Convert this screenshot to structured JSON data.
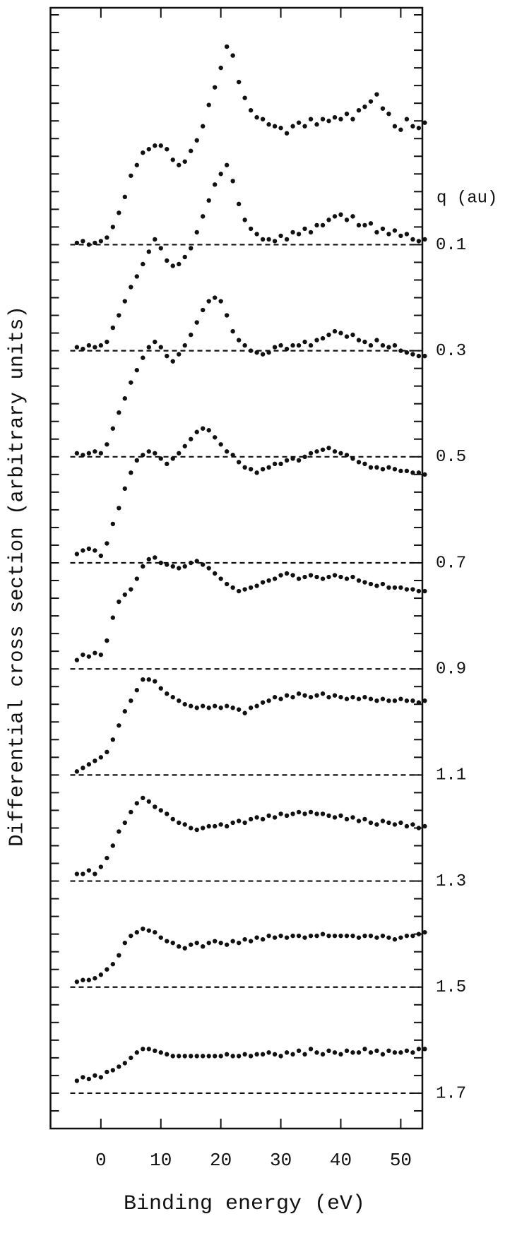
{
  "chart_data": {
    "type": "scatter",
    "xlabel": "Binding energy (eV)",
    "ylabel": "Differential cross section (arbitrary units)",
    "legend_title": "q (au)",
    "xlim": [
      -8.4,
      53.6
    ],
    "xticks": [
      0,
      10,
      20,
      30,
      40,
      50
    ],
    "ylim": [
      0,
      63.4
    ],
    "yticks": [
      0,
      1,
      2,
      3,
      4,
      5,
      6,
      7,
      8,
      9,
      10,
      11,
      12,
      13,
      14,
      15,
      16,
      17,
      18,
      19,
      20,
      21,
      22,
      23,
      24,
      25,
      26,
      27,
      28,
      29,
      30,
      31,
      32,
      33,
      34,
      35,
      36,
      37,
      38,
      39,
      40,
      41,
      42,
      43,
      44,
      45,
      46,
      47,
      48,
      49,
      50,
      51,
      52,
      53,
      54,
      55,
      56,
      57,
      58,
      59,
      60,
      61,
      62,
      63
    ],
    "color": "#111111",
    "x": [
      -4,
      -3,
      -2,
      -1,
      0,
      1,
      2,
      3,
      4,
      5,
      6,
      7,
      8,
      9,
      10,
      11,
      12,
      13,
      14,
      15,
      16,
      17,
      18,
      19,
      20,
      21,
      22,
      23,
      24,
      25,
      26,
      27,
      28,
      29,
      30,
      31,
      32,
      33,
      34,
      35,
      36,
      37,
      38,
      39,
      40,
      41,
      42,
      43,
      44,
      45,
      46,
      47,
      48,
      49,
      50,
      51,
      52,
      53,
      54
    ],
    "series": [
      {
        "name": "0.1",
        "baseline": 50,
        "values": [
          50.1,
          50.2,
          50.0,
          50.1,
          50.2,
          50.4,
          51.0,
          51.8,
          52.7,
          53.9,
          54.5,
          55.2,
          55.4,
          55.6,
          55.6,
          55.4,
          54.8,
          54.5,
          54.7,
          55.3,
          55.9,
          56.7,
          57.9,
          58.9,
          60.0,
          61.2,
          60.7,
          59.2,
          58.3,
          57.6,
          57.2,
          57.1,
          56.8,
          56.7,
          56.6,
          56.3,
          56.7,
          56.9,
          56.7,
          57.1,
          56.8,
          57.1,
          57.0,
          57.2,
          57.1,
          57.4,
          57.1,
          57.6,
          57.8,
          58.1,
          58.5,
          57.7,
          57.4,
          56.7,
          56.5,
          57.1,
          56.7,
          56.6,
          56.9
        ]
      },
      {
        "name": "0.3",
        "baseline": 44,
        "values": [
          44.2,
          44.1,
          44.3,
          44.2,
          44.3,
          44.5,
          45.3,
          46.0,
          46.8,
          47.6,
          48.2,
          48.9,
          49.6,
          50.3,
          49.8,
          49.1,
          48.8,
          48.9,
          49.3,
          49.8,
          50.7,
          51.6,
          52.5,
          53.4,
          54.0,
          54.5,
          53.6,
          52.3,
          51.4,
          50.9,
          50.6,
          50.3,
          50.3,
          50.2,
          50.5,
          50.3,
          50.7,
          50.6,
          50.9,
          50.7,
          51.1,
          51.1,
          51.4,
          51.6,
          51.7,
          51.4,
          51.6,
          51.1,
          51.1,
          51.2,
          50.7,
          50.9,
          50.6,
          50.8,
          50.5,
          50.6,
          50.3,
          50.2,
          50.3
        ]
      },
      {
        "name": "0.5",
        "baseline": 38,
        "values": [
          38.2,
          38.1,
          38.2,
          38.3,
          38.2,
          38.7,
          39.6,
          40.5,
          41.3,
          42.2,
          42.9,
          43.6,
          44.2,
          44.5,
          44.2,
          43.7,
          43.4,
          43.8,
          44.3,
          44.9,
          45.6,
          46.3,
          46.8,
          47.0,
          46.8,
          46.0,
          45.1,
          44.6,
          44.3,
          44.0,
          43.9,
          43.8,
          43.9,
          44.2,
          44.3,
          44.1,
          44.3,
          44.3,
          44.5,
          44.3,
          44.6,
          44.7,
          44.9,
          45.1,
          45.0,
          44.8,
          44.9,
          44.6,
          44.5,
          44.3,
          44.6,
          44.3,
          44.2,
          44.3,
          44.0,
          43.9,
          43.8,
          43.7,
          43.7
        ]
      },
      {
        "name": "0.7",
        "baseline": 32,
        "values": [
          32.5,
          32.7,
          32.8,
          32.7,
          32.4,
          33.1,
          34.2,
          35.1,
          36.2,
          37.1,
          37.8,
          38.1,
          38.3,
          38.2,
          37.9,
          37.6,
          37.9,
          38.2,
          38.6,
          39.0,
          39.4,
          39.6,
          39.5,
          39.1,
          38.7,
          38.3,
          38.1,
          37.7,
          37.4,
          37.3,
          37.1,
          37.3,
          37.4,
          37.6,
          37.6,
          37.8,
          37.9,
          37.8,
          38.0,
          38.2,
          38.3,
          38.4,
          38.5,
          38.3,
          38.2,
          38.1,
          37.9,
          37.7,
          37.6,
          37.4,
          37.4,
          37.3,
          37.4,
          37.3,
          37.2,
          37.2,
          37.1,
          37.1,
          37.0
        ]
      },
      {
        "name": "0.9",
        "baseline": 26,
        "values": [
          26.5,
          26.8,
          26.7,
          26.9,
          26.8,
          27.6,
          28.9,
          29.8,
          30.2,
          30.5,
          31.1,
          31.8,
          32.2,
          32.3,
          32.0,
          31.9,
          31.8,
          31.7,
          31.8,
          32.0,
          32.1,
          31.9,
          31.7,
          31.4,
          31.1,
          30.8,
          30.6,
          30.4,
          30.5,
          30.6,
          30.7,
          30.9,
          31.0,
          31.1,
          31.3,
          31.4,
          31.3,
          31.1,
          31.2,
          31.3,
          31.2,
          31.1,
          31.2,
          31.3,
          31.2,
          31.1,
          31.2,
          31.0,
          30.9,
          30.8,
          30.7,
          30.8,
          30.6,
          30.6,
          30.6,
          30.5,
          30.5,
          30.4,
          30.4
        ]
      },
      {
        "name": "1.1",
        "baseline": 20,
        "values": [
          20.2,
          20.4,
          20.6,
          20.8,
          21.0,
          21.3,
          22.0,
          22.8,
          23.6,
          24.2,
          24.8,
          25.4,
          25.4,
          25.3,
          24.9,
          24.6,
          24.4,
          24.2,
          24.0,
          23.9,
          23.8,
          23.9,
          23.8,
          23.9,
          23.8,
          23.9,
          23.8,
          23.7,
          23.5,
          23.8,
          23.9,
          24.1,
          24.2,
          24.4,
          24.3,
          24.5,
          24.4,
          24.6,
          24.5,
          24.4,
          24.5,
          24.6,
          24.4,
          24.5,
          24.4,
          24.3,
          24.4,
          24.3,
          24.4,
          24.3,
          24.2,
          24.3,
          24.2,
          24.2,
          24.3,
          24.2,
          24.2,
          24.1,
          24.2
        ]
      },
      {
        "name": "1.3",
        "baseline": 14,
        "values": [
          14.4,
          14.4,
          14.6,
          14.4,
          14.8,
          15.3,
          16.0,
          16.8,
          17.3,
          17.9,
          18.4,
          18.7,
          18.5,
          18.2,
          18.0,
          17.8,
          17.5,
          17.3,
          17.2,
          17.0,
          16.9,
          17.0,
          17.1,
          17.1,
          17.2,
          17.1,
          17.3,
          17.4,
          17.3,
          17.5,
          17.6,
          17.5,
          17.7,
          17.6,
          17.8,
          17.7,
          17.8,
          17.9,
          17.8,
          17.9,
          17.8,
          17.8,
          17.7,
          17.6,
          17.7,
          17.5,
          17.6,
          17.4,
          17.5,
          17.3,
          17.2,
          17.4,
          17.3,
          17.2,
          17.3,
          17.1,
          17.2,
          17.0,
          17.1
        ]
      },
      {
        "name": "1.5",
        "baseline": 8,
        "values": [
          8.3,
          8.4,
          8.4,
          8.5,
          8.7,
          9.0,
          9.3,
          9.8,
          10.5,
          10.9,
          11.1,
          11.3,
          11.2,
          11.1,
          10.8,
          10.6,
          10.5,
          10.3,
          10.2,
          10.4,
          10.5,
          10.3,
          10.5,
          10.6,
          10.5,
          10.4,
          10.6,
          10.5,
          10.7,
          10.6,
          10.8,
          10.7,
          10.9,
          10.8,
          10.9,
          10.8,
          10.9,
          10.9,
          10.8,
          10.9,
          10.9,
          11.0,
          10.9,
          10.9,
          10.9,
          10.9,
          10.9,
          10.8,
          10.9,
          10.9,
          10.8,
          10.9,
          10.8,
          10.7,
          10.8,
          10.9,
          10.9,
          11.0,
          11.1
        ]
      },
      {
        "name": "1.7",
        "baseline": 2,
        "values": [
          2.7,
          2.9,
          2.8,
          3.0,
          2.9,
          3.2,
          3.3,
          3.5,
          3.7,
          4.0,
          4.3,
          4.5,
          4.5,
          4.4,
          4.3,
          4.2,
          4.1,
          4.1,
          4.1,
          4.1,
          4.1,
          4.1,
          4.1,
          4.1,
          4.1,
          4.2,
          4.1,
          4.1,
          4.2,
          4.1,
          4.2,
          4.2,
          4.3,
          4.2,
          4.1,
          4.3,
          4.2,
          4.4,
          4.2,
          4.5,
          4.3,
          4.2,
          4.4,
          4.3,
          4.2,
          4.4,
          4.3,
          4.3,
          4.5,
          4.3,
          4.4,
          4.2,
          4.4,
          4.3,
          4.3,
          4.4,
          4.3,
          4.5,
          4.5
        ]
      }
    ]
  }
}
